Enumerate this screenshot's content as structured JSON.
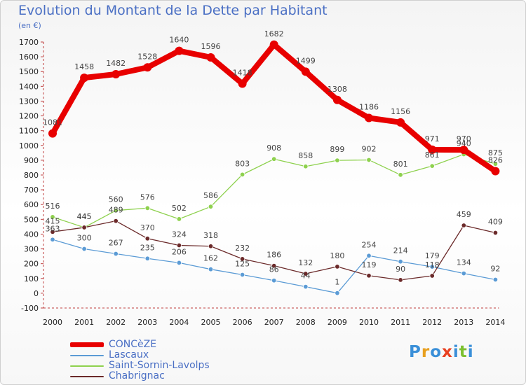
{
  "title": "Evolution du Montant de la Dette par Habitant",
  "unit_label": "(en €)",
  "logo": {
    "text": "Proxiti",
    "colors": [
      "#3a8fd8",
      "#e8a020",
      "#3a8fd8",
      "#e84020",
      "#3a8fd8",
      "#7cc030",
      "#3a8fd8"
    ]
  },
  "chart_data": {
    "type": "line",
    "title": "Evolution du Montant de la Dette par Habitant",
    "ylabel": "(en €)",
    "xlabel": "",
    "ylim": [
      -100,
      1700
    ],
    "ytick_step": 100,
    "grid": false,
    "legend_position": "bottom-left",
    "x": [
      "2000",
      "2001",
      "2002",
      "2003",
      "2004",
      "2005",
      "2006",
      "2007",
      "2008",
      "2009",
      "2010",
      "2011",
      "2012",
      "2013",
      "2014"
    ],
    "series": [
      {
        "name": "CONCèZE",
        "color": "#e80000",
        "values": [
          1081,
          1458,
          1482,
          1528,
          1640,
          1596,
          1418,
          1682,
          1499,
          1308,
          1186,
          1156,
          971,
          970,
          826
        ]
      },
      {
        "name": "Lascaux",
        "color": "#5b9bd5",
        "values": [
          363,
          300,
          267,
          235,
          206,
          162,
          125,
          86,
          44,
          1,
          254,
          214,
          179,
          134,
          92
        ]
      },
      {
        "name": "Saint-Sornin-Lavolps",
        "color": "#8ed14e",
        "values": [
          516,
          445,
          560,
          576,
          502,
          586,
          803,
          908,
          858,
          899,
          902,
          801,
          861,
          940,
          875
        ]
      },
      {
        "name": "Chabrignac",
        "color": "#6b2a2a",
        "values": [
          415,
          445,
          489,
          370,
          324,
          318,
          232,
          186,
          132,
          180,
          119,
          90,
          118,
          459,
          409
        ]
      }
    ]
  }
}
